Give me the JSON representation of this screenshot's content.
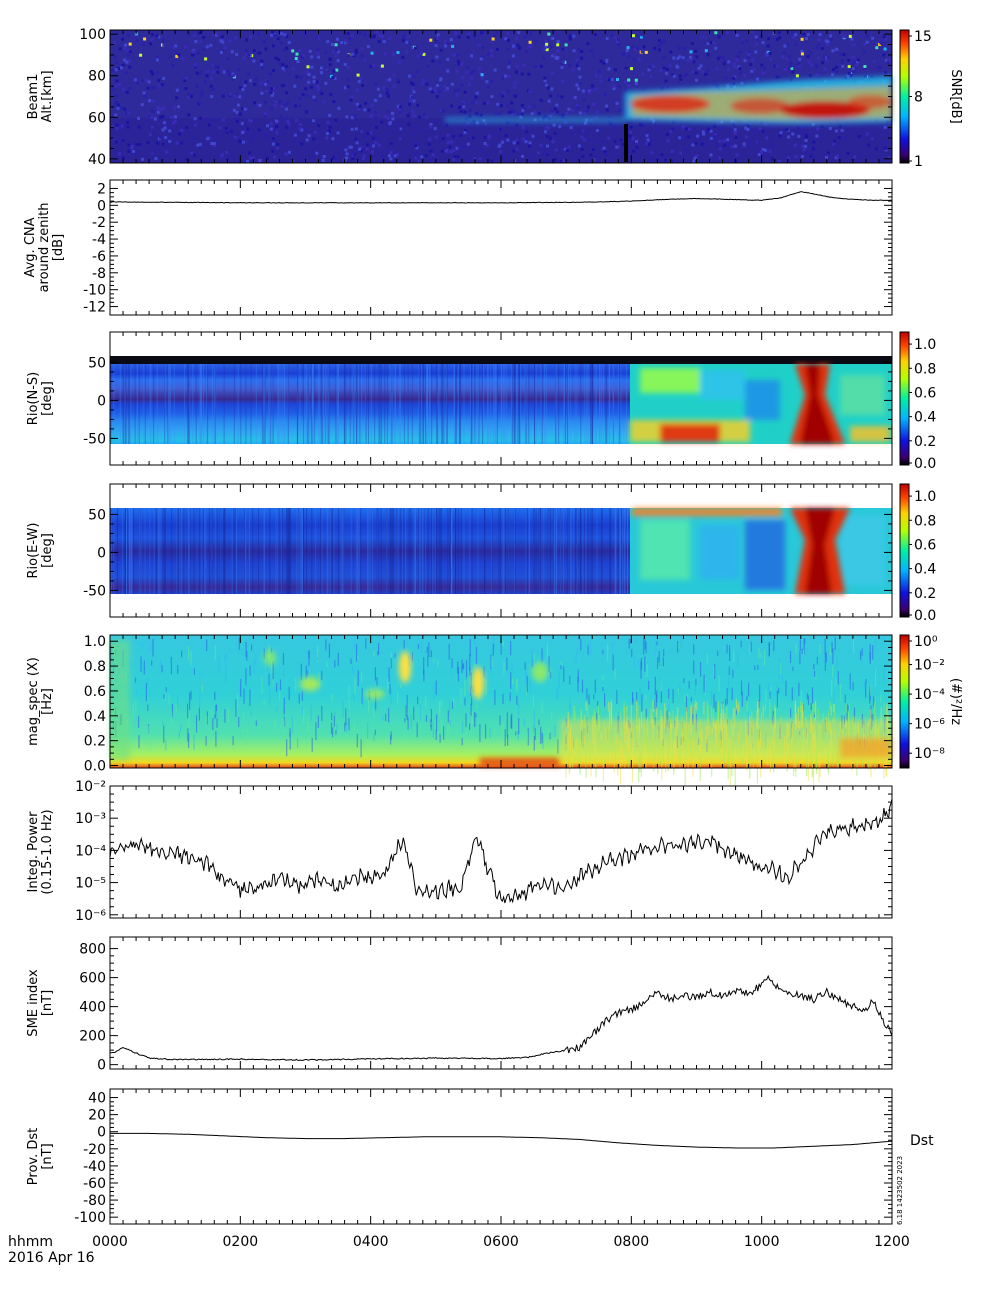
{
  "chart_data": [
    {
      "id": "p1",
      "type": "heatmap",
      "ylabel_lines": [
        "Beam1",
        "Alt.[km]"
      ],
      "yticks": [
        40,
        60,
        80,
        100
      ],
      "ylim": [
        38,
        102
      ],
      "colorbar": {
        "label": "SNR[dB]",
        "ticks": [
          "1",
          "8",
          "15"
        ],
        "range": [
          1,
          15
        ],
        "scale": "linear"
      },
      "description": "SNR background 1-4 dB; strong echoes (8-15 dB) 58-78 km after ~0740"
    },
    {
      "id": "p2",
      "type": "line",
      "ylabel_lines": [
        "Avg. CNA",
        "around zenith",
        "[dB]"
      ],
      "yticks": [
        2,
        0,
        -2,
        -4,
        -6,
        -8,
        -10,
        -12
      ],
      "ylim": [
        -13,
        3
      ],
      "x": [
        0,
        100,
        200,
        300,
        400,
        500,
        600,
        700,
        750,
        800,
        850,
        900,
        950,
        1000,
        1030,
        1050,
        1060,
        1070,
        1090,
        1110,
        1140,
        1170,
        1200
      ],
      "y": [
        0.4,
        0.35,
        0.3,
        0.3,
        0.3,
        0.3,
        0.3,
        0.35,
        0.4,
        0.5,
        0.7,
        0.8,
        0.7,
        0.6,
        0.9,
        1.4,
        1.6,
        1.5,
        1.2,
        0.9,
        0.7,
        0.6,
        0.6
      ]
    },
    {
      "id": "p3",
      "type": "heatmap",
      "ylabel_lines": [
        "Rio(N-S)",
        "[deg]"
      ],
      "yticks": [
        50,
        0,
        -50
      ],
      "ylim": [
        -85,
        90
      ],
      "colorbar": {
        "label": "",
        "ticks": [
          "0.0",
          "0.2",
          "0.4",
          "0.6",
          "0.8",
          "1.0"
        ],
        "range": [
          0,
          1.1
        ],
        "scale": "linear"
      }
    },
    {
      "id": "p4",
      "type": "heatmap",
      "ylabel_lines": [
        "Rio(E-W)",
        "[deg]"
      ],
      "yticks": [
        50,
        0,
        -50
      ],
      "ylim": [
        -85,
        90
      ],
      "colorbar": {
        "label": "",
        "ticks": [
          "0.0",
          "0.2",
          "0.4",
          "0.6",
          "0.8",
          "1.0"
        ],
        "range": [
          0,
          1.1
        ],
        "scale": "linear"
      }
    },
    {
      "id": "p5",
      "type": "heatmap",
      "ylabel_lines": [
        "mag_spec (X)",
        "[Hz]"
      ],
      "yticks": [
        0.0,
        0.2,
        0.4,
        0.6,
        0.8,
        1.0
      ],
      "ytick_labels": [
        "0.0",
        "0.2",
        "0.4",
        "0.6",
        "0.8",
        "1.0"
      ],
      "ylim": [
        -0.02,
        1.05
      ],
      "colorbar": {
        "label": "(#)²/Hz",
        "ticks": [
          "10⁰",
          "10⁻²",
          "10⁻⁴",
          "10⁻⁶",
          "10⁻⁸"
        ],
        "range": [
          -9,
          0
        ],
        "scale": "log"
      }
    },
    {
      "id": "p6",
      "type": "line",
      "ylabel_lines": [
        "Integ. Power",
        "(0.15-1.0 Hz)"
      ],
      "yticks": [
        -6,
        -5,
        -4,
        -3,
        -2
      ],
      "ytick_labels": [
        "10⁻⁶",
        "10⁻⁵",
        "10⁻⁴",
        "10⁻³",
        "10⁻²"
      ],
      "ylim": [
        -6.1,
        -2
      ],
      "scale": "log",
      "x": [
        0,
        30,
        60,
        100,
        140,
        170,
        200,
        240,
        260,
        290,
        320,
        350,
        380,
        400,
        420,
        440,
        450,
        460,
        470,
        500,
        540,
        555,
        565,
        575,
        590,
        600,
        630,
        660,
        700,
        730,
        760,
        790,
        830,
        880,
        920,
        950,
        980,
        1000,
        1020,
        1040,
        1050,
        1070,
        1100,
        1130,
        1160,
        1180,
        1195,
        1200
      ],
      "y": [
        -4.2,
        -3.8,
        -3.9,
        -4.1,
        -4.3,
        -4.8,
        -5.2,
        -5.1,
        -4.8,
        -5.1,
        -4.9,
        -5.2,
        -4.8,
        -4.9,
        -4.7,
        -4.0,
        -3.7,
        -4.4,
        -5.2,
        -5.3,
        -5.1,
        -4.0,
        -3.6,
        -4.3,
        -5.1,
        -5.5,
        -5.4,
        -5.0,
        -5.2,
        -4.7,
        -4.4,
        -4.2,
        -3.9,
        -3.8,
        -3.7,
        -4.1,
        -4.3,
        -4.6,
        -4.6,
        -4.9,
        -4.6,
        -4.1,
        -3.4,
        -3.3,
        -3.2,
        -3.1,
        -2.8,
        -2.4
      ]
    },
    {
      "id": "p7",
      "type": "line",
      "ylabel_lines": [
        "SME index",
        "[nT]"
      ],
      "yticks": [
        0,
        200,
        400,
        600,
        800
      ],
      "ylim": [
        -30,
        880
      ],
      "x": [
        0,
        10,
        20,
        40,
        60,
        100,
        200,
        300,
        400,
        500,
        600,
        640,
        660,
        700,
        720,
        740,
        760,
        780,
        800,
        820,
        840,
        860,
        880,
        900,
        920,
        940,
        960,
        980,
        1000,
        1010,
        1030,
        1060,
        1080,
        1100,
        1120,
        1140,
        1160,
        1170,
        1180,
        1190,
        1200
      ],
      "y": [
        80,
        90,
        120,
        80,
        45,
        35,
        38,
        32,
        40,
        45,
        42,
        50,
        70,
        100,
        120,
        200,
        300,
        360,
        380,
        430,
        500,
        450,
        480,
        460,
        500,
        480,
        510,
        490,
        550,
        600,
        500,
        480,
        450,
        500,
        450,
        400,
        380,
        440,
        360,
        280,
        200
      ]
    },
    {
      "id": "p8",
      "type": "line",
      "ylabel_lines": [
        "Prov. Dst",
        "[nT]"
      ],
      "yticks": [
        40,
        20,
        0,
        -20,
        -40,
        -60,
        -80,
        -100
      ],
      "ylim": [
        -108,
        50
      ],
      "series_label": "Dst",
      "x": [
        0,
        60,
        120,
        180,
        240,
        300,
        360,
        420,
        480,
        540,
        600,
        660,
        720,
        780,
        840,
        900,
        960,
        1020,
        1080,
        1140,
        1200
      ],
      "y": [
        -2,
        -2,
        -3,
        -5,
        -7,
        -8,
        -8,
        -7,
        -6,
        -6,
        -6,
        -7,
        -9,
        -13,
        -16,
        -18,
        -19,
        -19,
        -17,
        -15,
        -11
      ]
    }
  ],
  "x_axis": {
    "ticks": [
      0,
      200,
      400,
      600,
      800,
      1000,
      1200
    ],
    "tick_labels": [
      "0000",
      "0200",
      "0400",
      "0600",
      "0800",
      "1000",
      "1200"
    ],
    "xlim": [
      0,
      1200
    ]
  },
  "footer": {
    "time_label": "hhmm",
    "date_label": "2016 Apr 16",
    "stamp": "6.18  1423502  2023"
  },
  "colors": {
    "line": "#000000",
    "frame": "#000000"
  }
}
